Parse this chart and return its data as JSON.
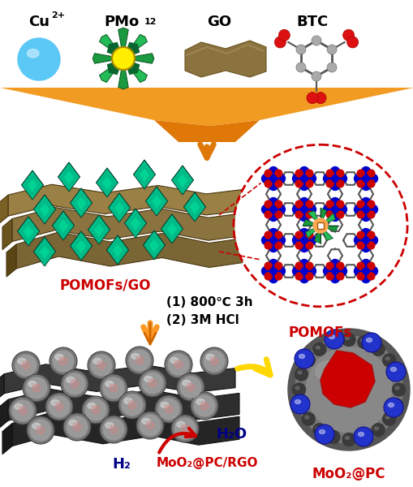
{
  "top_labels_cu": "Cu",
  "top_labels_cu_sup": "2+",
  "top_labels_pmo": "PMo",
  "top_labels_pmo_sub": "12",
  "top_labels_go": "GO",
  "top_labels_btc": "BTC",
  "pomofs_go_label": "POMOFs/GO",
  "pomofs_label": "POMOFs",
  "condition1": "(1) 800℃ 3h",
  "condition2": "(2) 3M HCl",
  "moo2_rgo_label": "MoO₂@PC/RGO",
  "moo2_pc_label": "MoO₂@PC",
  "h2o_label": "H₂O",
  "h2_label": "H₂",
  "color_red": "#CC0000",
  "color_blue_label": "#000088",
  "color_orange": "#E87020",
  "color_yellow": "#FFD700",
  "color_teal_dark": "#007755",
  "color_teal_mid": "#009966",
  "color_teal_light": "#00CC88",
  "color_tan_dark": "#6B5820",
  "color_tan_mid": "#7A6535",
  "color_tan_light": "#8B7340",
  "color_rgo_dark": "#222222",
  "color_rgo_mid": "#2E2E2E",
  "color_rgo_light": "#3A3A3A",
  "bg_color": "#FFFFFF",
  "funnel_color": "#F0900A"
}
